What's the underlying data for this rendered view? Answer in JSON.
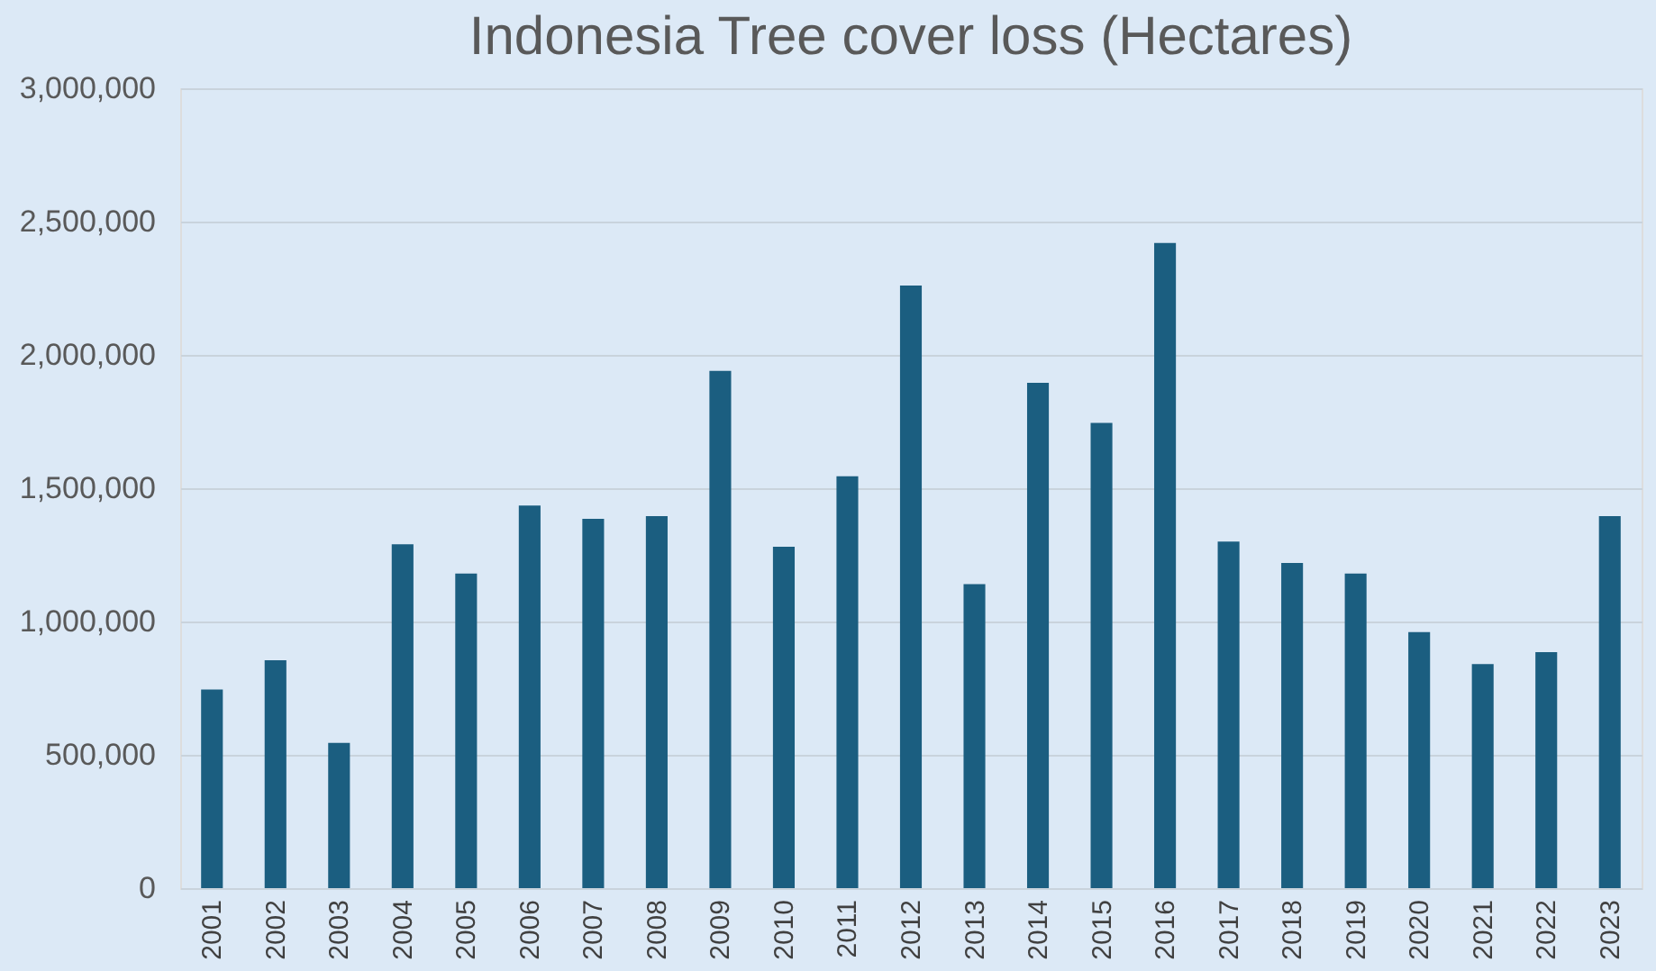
{
  "chart_data": {
    "type": "bar",
    "title": "Indonesia Tree cover loss (Hectares)",
    "categories": [
      "2001",
      "2002",
      "2003",
      "2004",
      "2005",
      "2006",
      "2007",
      "2008",
      "2009",
      "2010",
      "2011",
      "2012",
      "2013",
      "2014",
      "2015",
      "2016",
      "2017",
      "2018",
      "2019",
      "2020",
      "2021",
      "2022",
      "2023"
    ],
    "values": [
      745000,
      855000,
      545000,
      1290000,
      1180000,
      1435000,
      1385000,
      1395000,
      1940000,
      1280000,
      1545000,
      2260000,
      1140000,
      1895000,
      1745000,
      2420000,
      1300000,
      1220000,
      1180000,
      960000,
      840000,
      885000,
      1395000
    ],
    "color": "#1b5e80",
    "ylim": [
      0,
      3000000
    ],
    "yticks": [
      {
        "value": 0,
        "label": "0"
      },
      {
        "value": 500000,
        "label": "500,000"
      },
      {
        "value": 1000000,
        "label": "1,000,000"
      },
      {
        "value": 1500000,
        "label": "1,500,000"
      },
      {
        "value": 2000000,
        "label": "2,000,000"
      },
      {
        "value": 2500000,
        "label": "2,500,000"
      },
      {
        "value": 3000000,
        "label": "3,000,000"
      }
    ],
    "grid": "y"
  }
}
